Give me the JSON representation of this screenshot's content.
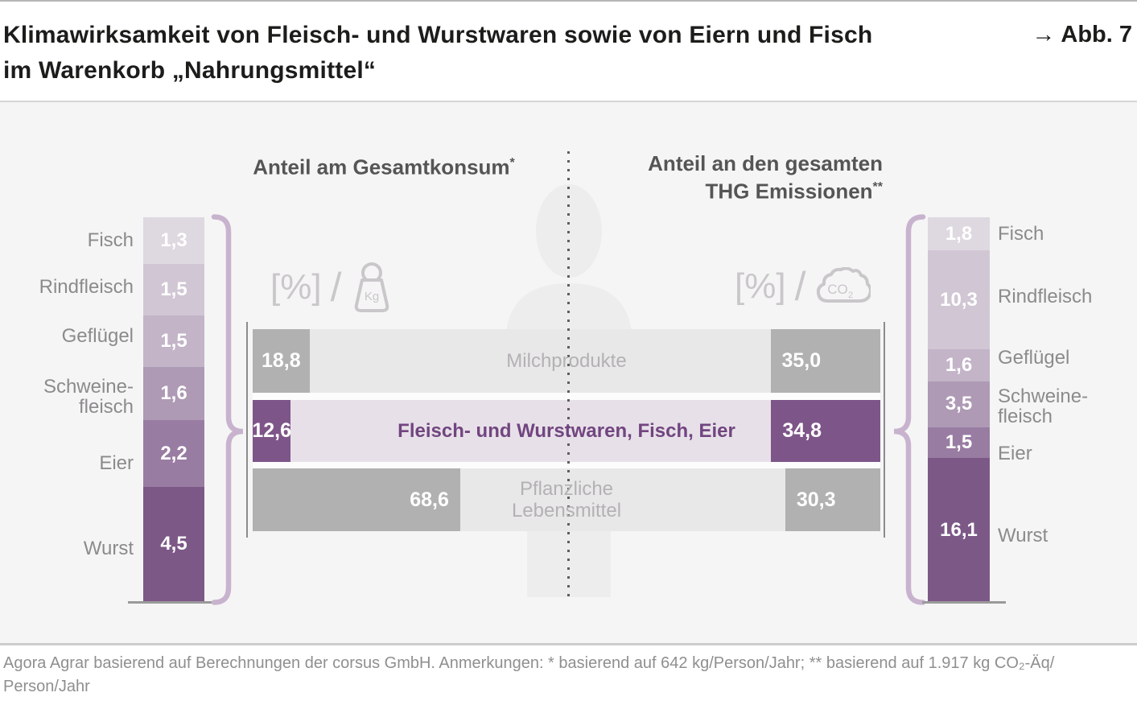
{
  "header": {
    "title": "Klimawirksamkeit von Fleisch- und Wurstwaren sowie von Eiern und Fisch\nim Warenkorb „Nahrungsmittel“",
    "figure_ref": "→ Abb. 7"
  },
  "columns": {
    "left_title": "Anteil am Gesamtkonsum",
    "left_sup": "*",
    "right_title_line1": "Anteil an den gesamten",
    "right_title_line2": "THG Emissionen",
    "right_sup": "**"
  },
  "units": {
    "left": {
      "percent": "[%]",
      "slash": "/",
      "icon": "kg-bag-icon",
      "icon_text": "Kg"
    },
    "right": {
      "percent": "[%]",
      "slash": "/",
      "icon": "co2-cloud-icon",
      "icon_text_main": "CO",
      "icon_text_sub": "2"
    }
  },
  "footer": {
    "source": "Agora Agrar basierend auf Berechnungen der corsus GmbH. Anmerkungen: * basierend auf 642 kg/Person/Jahr; ** basierend auf 1.917 kg CO₂-Äq/\nPerson/Jahr"
  },
  "chart_data": {
    "type": "bar",
    "layout": "two stacked columns (left = share of total consumption, right = share of total GHG emissions) linked by three horizontal category rows",
    "unit": "%",
    "title": "Klimawirksamkeit von Fleisch- und Wurstwaren sowie von Eiern und Fisch im Warenkorb „Nahrungsmittel“",
    "left_column": {
      "title": "Anteil am Gesamtkonsum*",
      "basis_note": "basierend auf 642 kg/Person/Jahr",
      "total": 12.6,
      "segments": [
        {
          "label": "Fisch",
          "value": 1.3,
          "display": "1,3",
          "color": "#ded8e0"
        },
        {
          "label": "Rindfleisch",
          "value": 1.5,
          "display": "1,5",
          "color": "#d1c7d4"
        },
        {
          "label": "Geflügel",
          "value": 1.5,
          "display": "1,5",
          "color": "#c3b4c8"
        },
        {
          "label": "Schweine-\nfleisch",
          "value": 1.6,
          "display": "1,6",
          "color": "#ae9ab5"
        },
        {
          "label": "Eier",
          "value": 2.2,
          "display": "2,2",
          "color": "#997ca2"
        },
        {
          "label": "Wurst",
          "value": 4.5,
          "display": "4,5",
          "color": "#7c5887"
        }
      ]
    },
    "right_column": {
      "title": "Anteil an den gesamten THG Emissionen**",
      "basis_note": "basierend auf 1.917 kg CO₂-Äq/Person/Jahr",
      "total": 34.8,
      "segments": [
        {
          "label": "Fisch",
          "value": 1.8,
          "display": "1,8",
          "color": "#ded8e0"
        },
        {
          "label": "Rindfleisch",
          "value": 10.3,
          "display": "10,3",
          "color": "#d1c7d4"
        },
        {
          "label": "Geflügel",
          "value": 1.6,
          "display": "1,6",
          "color": "#c3b4c8"
        },
        {
          "label": "Schweine-\nfleisch",
          "value": 3.5,
          "display": "3,5",
          "color": "#ae9ab5"
        },
        {
          "label": "Eier",
          "value": 1.5,
          "display": "1,5",
          "color": "#997ca2"
        },
        {
          "label": "Wurst",
          "value": 16.1,
          "display": "16,1",
          "color": "#7c5887"
        }
      ]
    },
    "middle_rows": [
      {
        "label": "Milchprodukte",
        "left_value": 18.8,
        "left_display": "18,8",
        "right_value": 35.0,
        "right_display": "35,0",
        "fill_color": "#e9e8e9",
        "cap_color": "#b2b1b2",
        "label_color": "#b3b1b3"
      },
      {
        "label": "Fleisch- und Wurstwaren, Fisch, Eier",
        "left_value": 12.6,
        "left_display": "12,6",
        "right_value": 34.8,
        "right_display": "34,8",
        "fill_color": "#e7e0e9",
        "cap_color": "#7e5589",
        "label_color": "#71457f"
      },
      {
        "label": "Pflanzliche\nLebensmittel",
        "left_value": 68.6,
        "left_display": "68,6",
        "right_value": 30.3,
        "right_display": "30,3",
        "fill_color": "#e9e8e9",
        "cap_color": "#b2b1b2",
        "label_color": "#b3b1b3"
      }
    ]
  }
}
